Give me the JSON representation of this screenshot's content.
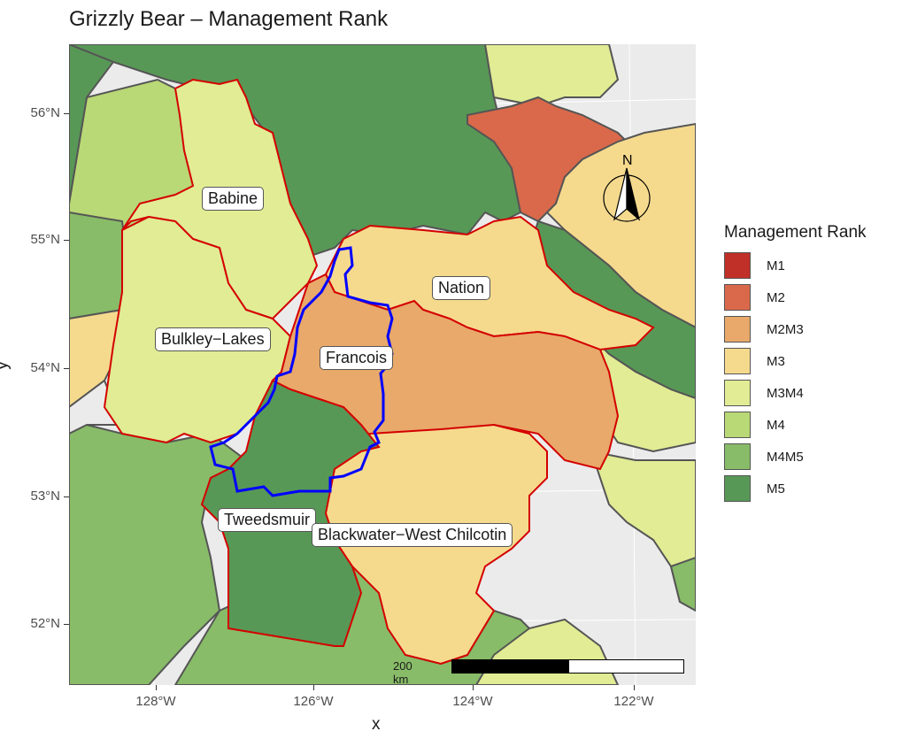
{
  "title": "Grizzly Bear – Management Rank",
  "axes": {
    "xlabel": "x",
    "ylabel": "y",
    "y_ticks": [
      "56°N",
      "55°N",
      "54°N",
      "53°N",
      "52°N"
    ],
    "x_ticks": [
      "128°W",
      "126°W",
      "124°W",
      "122°W"
    ]
  },
  "legend": {
    "title": "Management Rank",
    "items": [
      {
        "label": "M1",
        "color": "#c03028"
      },
      {
        "label": "M2",
        "color": "#d9694a"
      },
      {
        "label": "M2M3",
        "color": "#e8a96a"
      },
      {
        "label": "M3",
        "color": "#f5da8e"
      },
      {
        "label": "M3M4",
        "color": "#e1ec94"
      },
      {
        "label": "M4",
        "color": "#b9d876"
      },
      {
        "label": "M4M5",
        "color": "#88bc68"
      },
      {
        "label": "M5",
        "color": "#589856"
      }
    ]
  },
  "regions": [
    {
      "name": "Babine",
      "rank": "M3M4"
    },
    {
      "name": "Nation",
      "rank": "M3"
    },
    {
      "name": "Bulkley−Lakes",
      "rank": "M3M4"
    },
    {
      "name": "Francois",
      "rank": "M2M3"
    },
    {
      "name": "Tweedsmuir",
      "rank": "M5"
    },
    {
      "name": "Blackwater−West Chilcotin",
      "rank": "M3"
    }
  ],
  "scale_bar": {
    "label": "200 km"
  },
  "north_arrow": {
    "label": "N"
  },
  "colors": {
    "highlight_border": "#d40000",
    "park_border": "#0000ee",
    "panel_bg": "#ebebeb"
  }
}
